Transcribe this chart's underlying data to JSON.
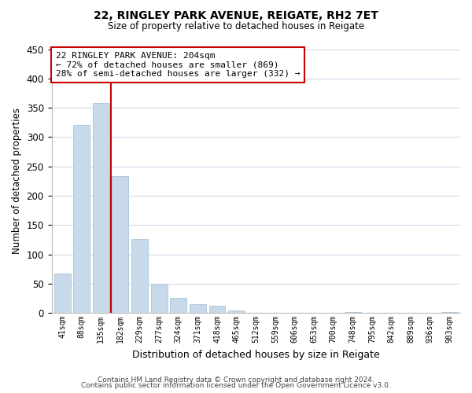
{
  "title_line1": "22, RINGLEY PARK AVENUE, REIGATE, RH2 7ET",
  "title_line2": "Size of property relative to detached houses in Reigate",
  "xlabel": "Distribution of detached houses by size in Reigate",
  "ylabel": "Number of detached properties",
  "bar_color": "#c8daea",
  "bar_edge_color": "#aac4d8",
  "bins": [
    "41sqm",
    "88sqm",
    "135sqm",
    "182sqm",
    "229sqm",
    "277sqm",
    "324sqm",
    "371sqm",
    "418sqm",
    "465sqm",
    "512sqm",
    "559sqm",
    "606sqm",
    "653sqm",
    "700sqm",
    "748sqm",
    "795sqm",
    "842sqm",
    "889sqm",
    "936sqm",
    "983sqm"
  ],
  "values": [
    67,
    320,
    358,
    233,
    126,
    48,
    25,
    15,
    12,
    4,
    0,
    0,
    0,
    0,
    0,
    2,
    0,
    0,
    0,
    0,
    2
  ],
  "property_line_color": "#cc0000",
  "annotation_line1": "22 RINGLEY PARK AVENUE: 204sqm",
  "annotation_line2": "← 72% of detached houses are smaller (869)",
  "annotation_line3": "28% of semi-detached houses are larger (332) →",
  "annotation_box_color": "#ffffff",
  "annotation_box_edge": "#cc0000",
  "ylim": [
    0,
    450
  ],
  "yticks": [
    0,
    50,
    100,
    150,
    200,
    250,
    300,
    350,
    400,
    450
  ],
  "footer1": "Contains HM Land Registry data © Crown copyright and database right 2024.",
  "footer2": "Contains public sector information licensed under the Open Government Licence v3.0.",
  "background_color": "#ffffff",
  "grid_color": "#ccdaeb"
}
